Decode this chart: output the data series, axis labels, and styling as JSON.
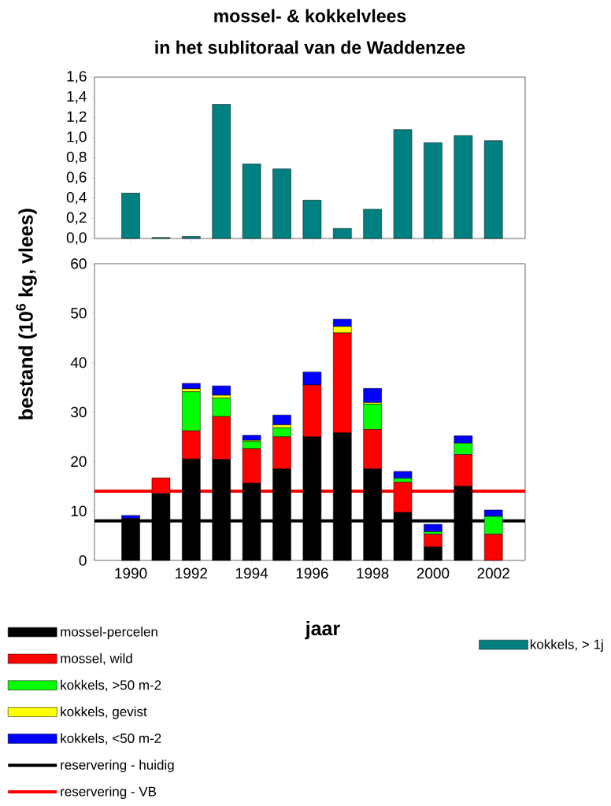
{
  "chart_data": [
    {
      "type": "bar",
      "title": "mossel- & kokkelvlees",
      "subtitle": "in het sublitoraal van de Waddenzee",
      "x": [
        1990,
        1991,
        1992,
        1993,
        1994,
        1995,
        1996,
        1997,
        1998,
        1999,
        2000,
        2001,
        2002
      ],
      "series": [
        {
          "name": "kokkels, > 1j",
          "color": "#008080",
          "values": [
            0.45,
            0.01,
            0.02,
            1.33,
            0.74,
            0.69,
            0.38,
            0.1,
            0.29,
            1.08,
            0.95,
            1.02,
            0.97
          ]
        }
      ],
      "xlim": [
        1988.8,
        2003.05
      ],
      "xticks": [
        1990,
        1992,
        1994,
        1996,
        1998,
        2000,
        2002
      ],
      "ylim": [
        0,
        1.6
      ],
      "yticks": [
        {
          "value": 0,
          "label": "0,0"
        },
        {
          "value": 0.2,
          "label": "0,2"
        },
        {
          "value": 0.4,
          "label": "0,4"
        },
        {
          "value": 0.6,
          "label": "0,6"
        },
        {
          "value": 0.8,
          "label": "0,8"
        },
        {
          "value": 1.0,
          "label": "1,0"
        },
        {
          "value": 1.2,
          "label": "1,2"
        },
        {
          "value": 1.4,
          "label": "1,4"
        },
        {
          "value": 1.6,
          "label": "1,6"
        }
      ],
      "tick_labels": "y",
      "legend": "bottom right"
    },
    {
      "type": "bar",
      "stacked": true,
      "xlabel": "jaar",
      "ylabel": "bestand (10$^{6}$ kg, vlees)",
      "x": [
        1990,
        1991,
        1992,
        1993,
        1994,
        1995,
        1996,
        1997,
        1998,
        1999,
        2000,
        2001,
        2002
      ],
      "series": [
        {
          "name": "mossel-percelen",
          "color": "#000000",
          "values": [
            8.5,
            13.5,
            20.5,
            20.4,
            15.6,
            18.5,
            25.0,
            25.8,
            18.5,
            9.7,
            2.7,
            15.0,
            0
          ]
        },
        {
          "name": "mossel, wild",
          "color": "#ff0000",
          "values": [
            0,
            3.2,
            5.7,
            8.7,
            7.0,
            6.5,
            10.5,
            20.2,
            8.0,
            6.1,
            2.6,
            6.4,
            5.3
          ]
        },
        {
          "name": "kokkels, >50 m-2",
          "color": "#00ff00",
          "values": [
            0,
            0,
            7.9,
            3.7,
            1.5,
            1.8,
            0,
            0,
            5.1,
            0.8,
            0.5,
            2.3,
            3.6
          ]
        },
        {
          "name": "kokkels, gevist",
          "color": "#ffff00",
          "values": [
            0,
            0,
            0.6,
            0.6,
            0.2,
            0.6,
            0,
            1.3,
            0.3,
            0,
            0,
            0,
            0
          ]
        },
        {
          "name": "kokkels, <50 m-2",
          "color": "#0000ff",
          "values": [
            0.6,
            0,
            1.1,
            1.9,
            1.0,
            2.0,
            2.6,
            1.5,
            2.9,
            1.4,
            1.5,
            1.5,
            1.3
          ]
        }
      ],
      "ref_lines": [
        {
          "axis": "y",
          "value": 8,
          "label": "reservering - huidig",
          "color": "#000000"
        },
        {
          "axis": "y",
          "value": 14,
          "label": "reservering - VB",
          "color": "#ff0000"
        }
      ],
      "xlim": [
        1988.8,
        2003.05
      ],
      "xticks": [
        1990,
        1992,
        1994,
        1996,
        1998,
        2000,
        2002
      ],
      "ylim": [
        0,
        60
      ],
      "yticks": [
        0,
        10,
        20,
        30,
        40,
        50,
        60
      ],
      "legend": "bottom left"
    }
  ]
}
